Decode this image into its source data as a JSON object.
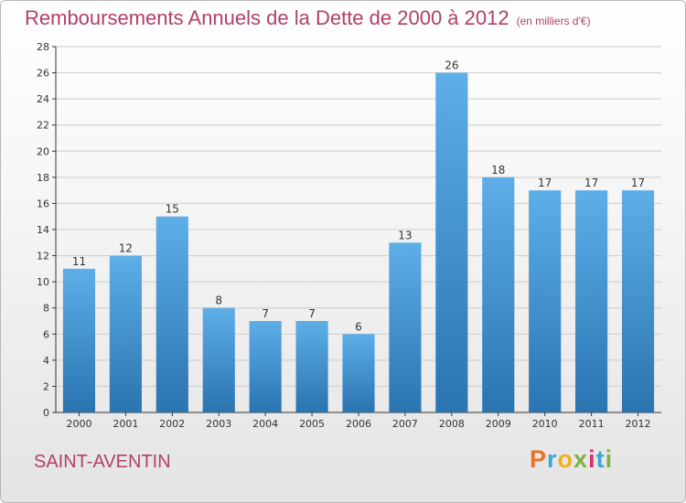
{
  "header": {
    "title": "Remboursements Annuels de la Dette de 2000 à 2012",
    "subtitle": "(en milliers d'€)"
  },
  "location": "SAINT-AVENTIN",
  "brand": {
    "letters": [
      "P",
      "r",
      "o",
      "x",
      "i",
      "t",
      "i"
    ],
    "colors": [
      "#e8732a",
      "#3aa7d8",
      "#f0b21c",
      "#7cb342",
      "#d8336a",
      "#3aa7d8",
      "#7cb342"
    ]
  },
  "colors": {
    "bar_top": "#5eaee8",
    "bar_bottom": "#2a74b0"
  },
  "chart_data": {
    "type": "bar",
    "categories": [
      "2000",
      "2001",
      "2002",
      "2003",
      "2004",
      "2005",
      "2006",
      "2007",
      "2008",
      "2009",
      "2010",
      "2011",
      "2012"
    ],
    "values": [
      11,
      12,
      15,
      8,
      7,
      7,
      6,
      13,
      26,
      18,
      17,
      17,
      17
    ],
    "title": "Remboursements Annuels de la Dette de 2000 à 2012",
    "ylim": [
      0,
      28
    ],
    "yticks": [
      0,
      2,
      4,
      6,
      8,
      10,
      12,
      14,
      16,
      18,
      20,
      22,
      24,
      26,
      28
    ],
    "grid": true,
    "data_labels": true
  }
}
